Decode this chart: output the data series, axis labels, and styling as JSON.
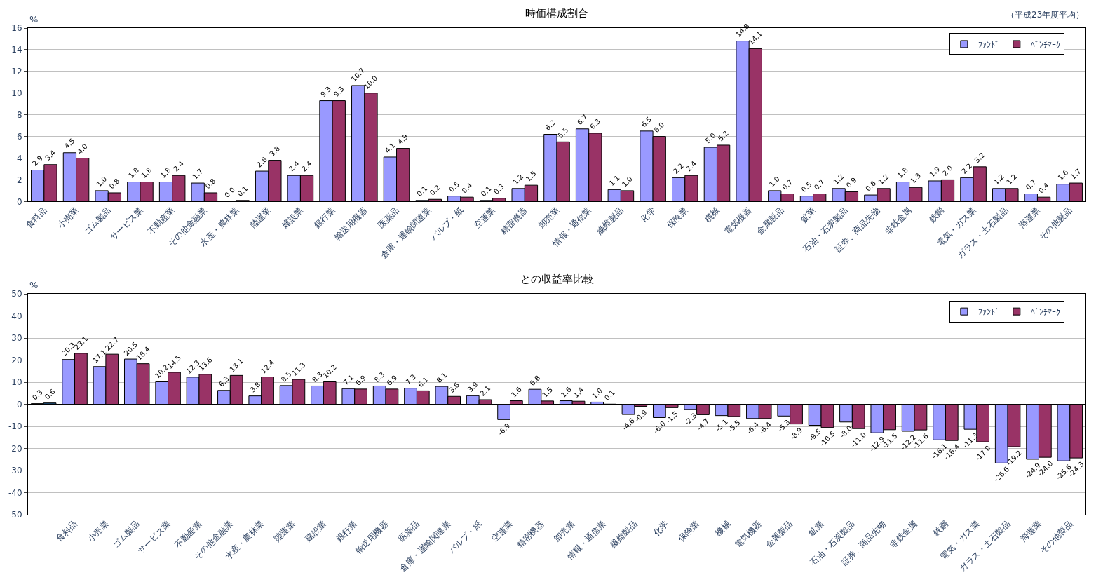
{
  "chart_data": [
    {
      "type": "bar",
      "title": "時価構成割合",
      "ylabel": "%",
      "annotations": [
        "（平成23年度平均）"
      ],
      "categories": [
        "食料品",
        "小売業",
        "ゴム製品",
        "サービス業",
        "不動産業",
        "その他金融業",
        "水産・農林業",
        "陸運業",
        "建設業",
        "銀行業",
        "輸送用機器",
        "医薬品",
        "倉庫・運輸関連業",
        "パルプ・紙",
        "空運業",
        "精密機器",
        "卸売業",
        "情報・通信業",
        "繊維製品",
        "化学",
        "保険業",
        "機械",
        "電気機器",
        "金属製品",
        "鉱業",
        "石油・石炭製品",
        "証券、商品先物",
        "非鉄金属",
        "鉄鋼",
        "電気・ガス業",
        "ガラス・土石製品",
        "海運業",
        "その他製品"
      ],
      "series": [
        {
          "name": "ﾌｧﾝﾄﾞ",
          "color": "#9999ff",
          "values": [
            2.9,
            4.5,
            1.0,
            1.8,
            1.8,
            1.7,
            0.0,
            2.8,
            2.4,
            9.3,
            10.7,
            4.1,
            0.1,
            0.5,
            0.1,
            1.2,
            6.2,
            6.7,
            1.1,
            6.5,
            2.2,
            5.0,
            14.8,
            1.0,
            0.5,
            1.2,
            0.6,
            1.8,
            1.9,
            2.2,
            1.2,
            0.7,
            1.6
          ],
          "value_labels": [
            "2.9",
            "4.5",
            "1.0",
            "1.8",
            "1.8",
            "1.7",
            "0.0",
            "2.8",
            "2.4",
            "9.3",
            "10.7",
            "4.1",
            "0.1",
            "0.5",
            "0.1",
            "1.2",
            "6.2",
            "6.7",
            "1.1",
            "6.5",
            "2.2",
            "5.0",
            "14.8",
            "1.0",
            "0.5",
            "1.2",
            "0.6",
            "1.8",
            "1.9",
            "2.2",
            "1.2",
            "0.7",
            "1.6"
          ]
        },
        {
          "name": "ﾍﾞﾝﾁﾏｰｸ",
          "color": "#993366",
          "values": [
            3.4,
            4.0,
            0.8,
            1.8,
            2.4,
            0.8,
            0.1,
            3.8,
            2.4,
            9.3,
            10.0,
            4.9,
            0.2,
            0.4,
            0.3,
            1.5,
            5.5,
            6.3,
            1.0,
            6.0,
            2.4,
            5.2,
            14.1,
            0.7,
            0.7,
            0.9,
            1.2,
            1.3,
            2.0,
            3.2,
            1.2,
            0.4,
            1.7
          ],
          "value_labels": [
            "3.4",
            "4.0",
            "0.8",
            "1.8",
            "2.4",
            "0.8",
            "0.1",
            "3.8",
            "2.4",
            "9.3",
            "10.0",
            "4.9",
            "0.2",
            "0.4",
            "0.3",
            "1.5",
            "5.5",
            "6.3",
            "1.0",
            "6.0",
            "2.4",
            "5.2",
            "14.1",
            "0.7",
            "0.7",
            "0.9",
            "1.2",
            "1.3",
            "2.0",
            "3.2",
            "1.2",
            "0.4",
            "1.7"
          ]
        }
      ],
      "ylim": [
        0,
        16
      ],
      "yticks": [
        0,
        2,
        4,
        6,
        8,
        10,
        12,
        14,
        16
      ],
      "grid": "y",
      "legend": "top right"
    },
    {
      "type": "bar",
      "title": "との収益率比較",
      "ylabel": "%",
      "categories": [
        null,
        "食料品",
        "小売業",
        "ゴム製品",
        "サービス業",
        "不動産業",
        "その他金融業",
        "水産・農林業",
        "陸運業",
        "建設業",
        "銀行業",
        "輸送用機器",
        "医薬品",
        "倉庫・運輸関連業",
        "パルプ・紙",
        "空運業",
        "精密機器",
        "卸売業",
        "情報・通信業",
        "繊維製品",
        "化学",
        "保険業",
        "機械",
        "電気機器",
        "金属製品",
        "鉱業",
        "石油・石炭製品",
        "証券、商品先物",
        "非鉄金属",
        "鉄鋼",
        "電気・ガス業",
        "ガラス・土石製品",
        "海運業",
        "その他製品"
      ],
      "series": [
        {
          "name": "ﾌｧﾝﾄﾞ",
          "color": "#9999ff",
          "colors": [
            "#222222",
            "#9999ff",
            "#9999ff",
            "#9999ff",
            "#9999ff",
            "#9999ff",
            "#9999ff",
            "#9999ff",
            "#9999ff",
            "#9999ff",
            "#9999ff",
            "#9999ff",
            "#9999ff",
            "#9999ff",
            "#9999ff",
            "#9999ff",
            "#9999ff",
            "#9999ff",
            "#9999ff",
            "#9999ff",
            "#9999ff",
            "#9999ff",
            "#9999ff",
            "#9999ff",
            "#9999ff",
            "#9999ff",
            "#9999ff",
            "#9999ff",
            "#9999ff",
            "#9999ff",
            "#9999ff",
            "#9999ff",
            "#9999ff",
            "#9999ff"
          ],
          "values": [
            0.3,
            20.3,
            17.1,
            20.5,
            10.2,
            12.3,
            6.3,
            3.8,
            8.5,
            8.3,
            7.1,
            8.3,
            7.3,
            8.1,
            3.9,
            -6.9,
            6.8,
            1.6,
            1.0,
            -4.6,
            -6.0,
            -2.3,
            -5.1,
            -6.4,
            -5.3,
            -9.5,
            -8.0,
            -12.9,
            -12.2,
            -16.1,
            -11.3,
            -26.6,
            -24.9,
            -25.6
          ],
          "value_labels": [
            "0.3",
            "20.3",
            "17.1",
            "20.5",
            "10.2",
            "12.3",
            "6.3",
            "3.8",
            "8.5",
            "8.3",
            "7.1",
            "8.3",
            "7.3",
            "8.1",
            "3.9",
            "-6.9",
            "6.8",
            "1.6",
            "1.0",
            "-4.6",
            "-6.0",
            "-2.3",
            "-5.1",
            "-6.4",
            "-5.3",
            "-9.5",
            "-8.0",
            "-12.9",
            "-12.2",
            "-16.1",
            "-11.3",
            "-26.6",
            "-24.9",
            "-25.6"
          ]
        },
        {
          "name": "ﾍﾞﾝﾁﾏｰｸ",
          "color": "#993366",
          "colors": [
            "#1f4e79",
            "#993366",
            "#993366",
            "#993366",
            "#993366",
            "#993366",
            "#993366",
            "#993366",
            "#993366",
            "#993366",
            "#993366",
            "#993366",
            "#993366",
            "#993366",
            "#993366",
            "#993366",
            "#993366",
            "#993366",
            "#993366",
            "#993366",
            "#993366",
            "#993366",
            "#993366",
            "#993366",
            "#993366",
            "#993366",
            "#993366",
            "#993366",
            "#993366",
            "#993366",
            "#993366",
            "#993366",
            "#993366",
            "#993366"
          ],
          "values": [
            0.6,
            23.1,
            22.7,
            18.4,
            14.5,
            13.6,
            13.1,
            12.4,
            11.3,
            10.2,
            6.9,
            6.9,
            6.1,
            3.6,
            2.1,
            1.6,
            1.5,
            1.4,
            0.1,
            -0.9,
            -1.5,
            -4.7,
            -5.5,
            -6.4,
            -8.9,
            -10.5,
            -11.0,
            -11.5,
            -11.6,
            -16.4,
            -17.0,
            -19.2,
            -24.0,
            -24.3
          ],
          "value_labels": [
            "0.6",
            "23.1",
            "22.7",
            "18.4",
            "14.5",
            "13.6",
            "13.1",
            "12.4",
            "11.3",
            "10.2",
            "6.9",
            "6.9",
            "6.1",
            "3.6",
            "2.1",
            "1.6",
            "1.5",
            "1.4",
            "0.1",
            "-0.9",
            "-1.5",
            "-4.7",
            "-5.5",
            "-6.4",
            "-8.9",
            "-10.5",
            "-11.0",
            "-11.5",
            "-11.6",
            "-16.4",
            "-17.0",
            "-19.2",
            "-24.0",
            "-24.3"
          ]
        }
      ],
      "ylim": [
        -50,
        50
      ],
      "yticks": [
        -50,
        -40,
        -30,
        -20,
        -10,
        0,
        10,
        20,
        30,
        40,
        50
      ],
      "grid": "y",
      "legend": "top right"
    }
  ]
}
